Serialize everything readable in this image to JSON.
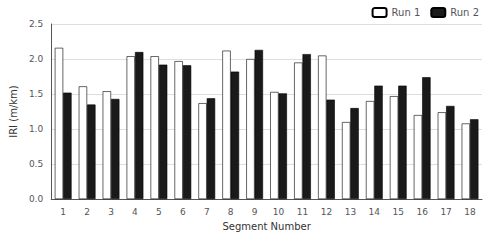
{
  "chart_data": {
    "type": "bar",
    "xlabel": "Segment Number",
    "ylabel": "IRI (m/km)",
    "categories": [
      "1",
      "2",
      "3",
      "4",
      "5",
      "6",
      "7",
      "8",
      "9",
      "10",
      "11",
      "12",
      "13",
      "14",
      "15",
      "16",
      "17",
      "18"
    ],
    "series": [
      {
        "name": "Run 1",
        "color": "#ffffff",
        "values": [
          2.16,
          1.61,
          1.54,
          2.04,
          2.04,
          1.97,
          1.37,
          2.12,
          2.0,
          1.53,
          1.95,
          2.05,
          1.1,
          1.4,
          1.47,
          1.2,
          1.24,
          1.08
        ]
      },
      {
        "name": "Run 2",
        "color": "#1a1a1a",
        "values": [
          1.52,
          1.35,
          1.43,
          2.1,
          1.92,
          1.91,
          1.44,
          1.82,
          2.13,
          1.51,
          2.07,
          1.42,
          1.3,
          1.62,
          1.62,
          1.74,
          1.33,
          1.14
        ]
      }
    ],
    "ylim": [
      0.0,
      2.5
    ],
    "yticks": [
      {
        "value": 0.0,
        "label": "0.0"
      },
      0.5,
      {
        "value": 1.0,
        "label": "1.0"
      },
      1.5,
      {
        "value": 2.0,
        "label": "2.0"
      },
      2.5
    ],
    "grid": true,
    "legend": "upper right"
  }
}
